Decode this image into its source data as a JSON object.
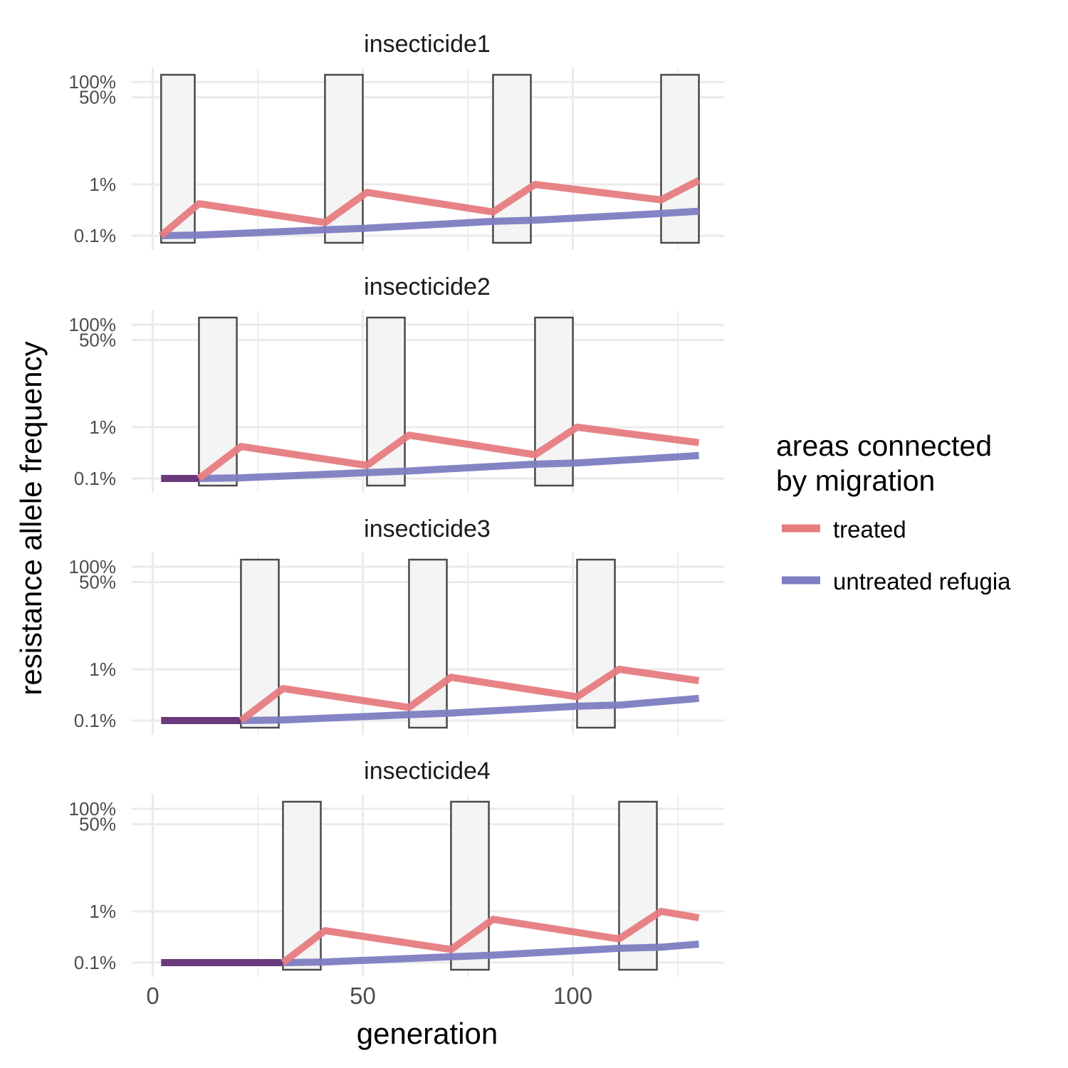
{
  "chart_data": {
    "type": "line",
    "xlabel": "generation",
    "ylabel": "resistance allele frequency",
    "y_scale": "log",
    "x_ticks": [
      0,
      50,
      100
    ],
    "y_ticks": [
      0.1,
      1,
      50,
      100
    ],
    "y_tick_labels": [
      "0.1%",
      "1%",
      "50%",
      "100%"
    ],
    "xlim": [
      -5,
      136
    ],
    "legend": {
      "title_lines": [
        "areas connected",
        "by migration"
      ],
      "position": "right",
      "entries": [
        {
          "label": "treated",
          "color": "#e67c7f"
        },
        {
          "label": "untreated refugia",
          "color": "#7d7dc2"
        }
      ]
    },
    "colors": {
      "overlap": "#6a3a7c",
      "window_fill": "#f4f4f4",
      "window_stroke": "#4a4a4a",
      "grid": "#ebebeb"
    },
    "panels": [
      {
        "title": "insecticide1",
        "windows": [
          [
            2,
            10
          ],
          [
            41,
            50
          ],
          [
            81,
            90
          ],
          [
            121,
            130
          ]
        ],
        "overlap_until": 2,
        "treated": [
          [
            2,
            0.1
          ],
          [
            11,
            0.42
          ],
          [
            41,
            0.18
          ],
          [
            51,
            0.7
          ],
          [
            81,
            0.29
          ],
          [
            91,
            1.0
          ],
          [
            121,
            0.5
          ],
          [
            130,
            1.2
          ]
        ],
        "untreated": [
          [
            2,
            0.1
          ],
          [
            11,
            0.103
          ],
          [
            41,
            0.13
          ],
          [
            51,
            0.14
          ],
          [
            81,
            0.19
          ],
          [
            91,
            0.2
          ],
          [
            121,
            0.27
          ],
          [
            130,
            0.3
          ]
        ]
      },
      {
        "title": "insecticide2",
        "windows": [
          [
            11,
            20
          ],
          [
            51,
            60
          ],
          [
            91,
            100
          ]
        ],
        "overlap_until": 11,
        "treated": [
          [
            11,
            0.1
          ],
          [
            21,
            0.42
          ],
          [
            51,
            0.18
          ],
          [
            61,
            0.7
          ],
          [
            91,
            0.29
          ],
          [
            101,
            1.0
          ],
          [
            130,
            0.5
          ]
        ],
        "untreated": [
          [
            11,
            0.1
          ],
          [
            21,
            0.103
          ],
          [
            51,
            0.13
          ],
          [
            61,
            0.14
          ],
          [
            91,
            0.19
          ],
          [
            101,
            0.2
          ],
          [
            130,
            0.28
          ]
        ]
      },
      {
        "title": "insecticide3",
        "windows": [
          [
            21,
            30
          ],
          [
            61,
            70
          ],
          [
            101,
            110
          ]
        ],
        "overlap_until": 21,
        "treated": [
          [
            21,
            0.1
          ],
          [
            31,
            0.42
          ],
          [
            61,
            0.18
          ],
          [
            71,
            0.7
          ],
          [
            101,
            0.29
          ],
          [
            111,
            1.0
          ],
          [
            130,
            0.6
          ]
        ],
        "untreated": [
          [
            21,
            0.1
          ],
          [
            31,
            0.103
          ],
          [
            61,
            0.13
          ],
          [
            71,
            0.14
          ],
          [
            101,
            0.19
          ],
          [
            111,
            0.2
          ],
          [
            130,
            0.27
          ]
        ]
      },
      {
        "title": "insecticide4",
        "windows": [
          [
            31,
            40
          ],
          [
            71,
            80
          ],
          [
            111,
            120
          ]
        ],
        "overlap_until": 31,
        "treated": [
          [
            31,
            0.1
          ],
          [
            41,
            0.42
          ],
          [
            71,
            0.18
          ],
          [
            81,
            0.7
          ],
          [
            111,
            0.29
          ],
          [
            121,
            1.0
          ],
          [
            130,
            0.75
          ]
        ],
        "untreated": [
          [
            31,
            0.1
          ],
          [
            41,
            0.103
          ],
          [
            71,
            0.13
          ],
          [
            81,
            0.14
          ],
          [
            111,
            0.19
          ],
          [
            121,
            0.2
          ],
          [
            130,
            0.23
          ]
        ]
      }
    ]
  }
}
